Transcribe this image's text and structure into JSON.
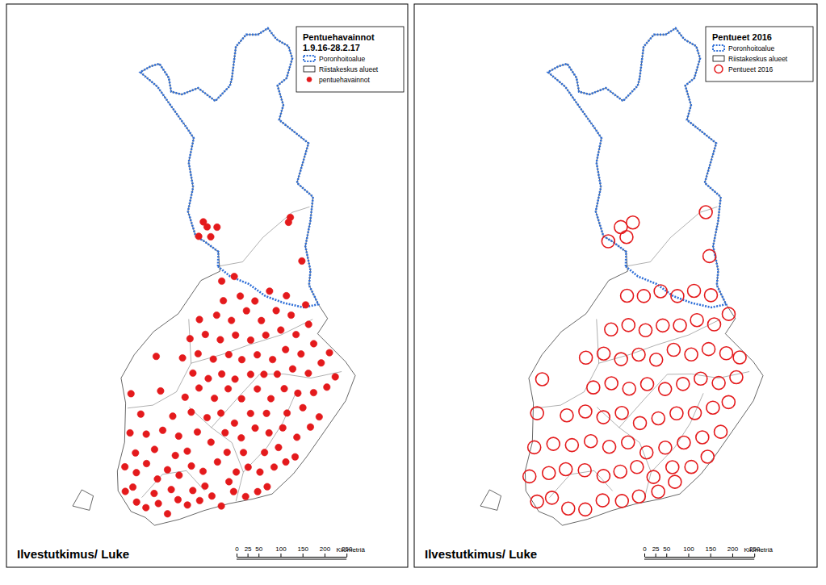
{
  "chart_data": [
    {
      "type": "map",
      "title": "Pentuehavainnot",
      "subtitle": "1.9.16-28.2.17",
      "legend": "top-right",
      "annotations": [
        "Ilvestutkimus/ Luke"
      ],
      "scale_bar": {
        "lim": [
          0,
          250
        ],
        "ticks": [
          0,
          25,
          50,
          100,
          150,
          200,
          250
        ],
        "label": "Kilometriä"
      },
      "series": [
        {
          "name": "Poronhoitoalue",
          "type": "boundary",
          "color": "#2f6fd8",
          "line_style": "dotted"
        },
        {
          "name": "Riistakeskus alueet",
          "type": "region",
          "color": "#000000"
        },
        {
          "name": "pentuehavainnot",
          "type": "scatter",
          "color": "#e41a1c",
          "marker": "dot",
          "x": [
            21.7,
            22.2,
            22.6,
            23.1,
            23.5,
            23.9,
            24.3,
            24.8,
            25.3,
            25.7,
            26.2,
            26.7,
            27.2,
            27.6,
            22.0,
            22.9,
            23.6,
            24.5,
            25.0,
            26.0,
            21.6,
            22.1,
            22.5,
            23.0,
            23.4,
            23.9,
            24.4,
            24.9,
            25.5,
            26.3,
            26.8,
            27.3,
            27.9,
            28.4,
            28.8,
            22.0,
            22.8,
            23.7,
            24.2,
            25.9,
            26.6,
            27.5,
            28.1,
            21.7,
            22.4,
            23.1,
            23.8,
            24.6,
            25.2,
            25.8,
            26.5,
            27.1,
            27.7,
            28.3,
            28.9,
            29.5,
            29.9,
            22.1,
            23.5,
            24.3,
            25.0,
            25.6,
            26.2,
            26.9,
            27.6,
            28.5,
            29.2,
            21.6,
            22.9,
            24.0,
            24.6,
            25.3,
            25.9,
            26.5,
            27.2,
            27.8,
            28.4,
            29.0,
            29.7,
            30.3,
            30.7,
            24.3,
            25.0,
            25.6,
            26.2,
            26.9,
            27.5,
            28.1,
            28.8,
            29.5,
            30.1,
            22.6,
            23.8,
            24.5,
            25.2,
            25.9,
            26.5,
            27.2,
            27.9,
            28.5,
            29.2,
            29.8,
            30.5,
            24.1,
            24.8,
            25.5,
            26.2,
            26.9,
            27.6,
            28.3,
            29.0,
            29.6,
            24.5,
            25.3,
            26.0,
            26.7,
            27.4,
            28.1,
            28.8,
            29.5,
            25.6,
            26.4,
            27.1,
            27.8,
            28.6,
            25.5,
            26.1,
            24.3,
            24.7,
            24.9,
            25.2,
            24.5,
            28.8,
            28.9,
            29.4
          ],
          "values": [
            60.5,
            60.3,
            60.2,
            60.3,
            60.1,
            60.4,
            60.3,
            60.4,
            60.5,
            60.3,
            60.6,
            60.5,
            60.6,
            60.7,
            60.6,
            60.5,
            60.6,
            60.6,
            60.7,
            60.8,
            61.0,
            60.9,
            61.1,
            60.8,
            61.0,
            60.9,
            61.1,
            61.0,
            61.2,
            61.0,
            61.1,
            61.0,
            61.1,
            61.2,
            61.3,
            61.3,
            61.4,
            61.3,
            61.4,
            61.4,
            61.4,
            61.4,
            61.5,
            61.7,
            61.7,
            61.8,
            61.7,
            61.8,
            61.6,
            61.8,
            61.7,
            61.9,
            61.8,
            61.9,
            61.7,
            61.9,
            62.1,
            62.1,
            62.1,
            62.2,
            62.1,
            62.2,
            62.0,
            62.2,
            62.2,
            62.2,
            62.3,
            62.5,
            62.6,
            62.5,
            62.7,
            62.5,
            62.7,
            62.5,
            62.7,
            62.5,
            62.7,
            62.6,
            62.6,
            62.7,
            62.9,
            63.0,
            62.9,
            63.0,
            62.9,
            63.0,
            63.0,
            63.0,
            63.1,
            63.0,
            63.2,
            63.3,
            63.3,
            63.4,
            63.3,
            63.4,
            63.3,
            63.4,
            63.3,
            63.5,
            63.4,
            63.6,
            63.4,
            63.7,
            63.8,
            63.7,
            63.8,
            63.7,
            63.8,
            63.9,
            63.8,
            64.0,
            64.1,
            64.2,
            64.1,
            64.3,
            64.1,
            64.3,
            64.2,
            64.4,
            64.5,
            64.6,
            64.5,
            64.7,
            64.6,
            64.9,
            65.0,
            65.8,
            66.0,
            65.8,
            66.0,
            66.1,
            66.1,
            66.2,
            65.3
          ]
        }
      ]
    },
    {
      "type": "map",
      "title": "Pentueet 2016",
      "legend": "top-right",
      "annotations": [
        "Ilvestutkimus/ Luke"
      ],
      "scale_bar": {
        "lim": [
          0,
          250
        ],
        "ticks": [
          0,
          25,
          50,
          100,
          150,
          200,
          250
        ],
        "label": "Kilometriä"
      },
      "series": [
        {
          "name": "Poronhoitoalue",
          "type": "boundary",
          "color": "#2f6fd8",
          "line_style": "dotted"
        },
        {
          "name": "Riistakeskus alueet",
          "type": "region",
          "color": "#000000"
        },
        {
          "name": "Pentueet 2016",
          "type": "scatter",
          "color": "#e41a1c",
          "marker": "circle",
          "x": [
            21.9,
            22.5,
            23.2,
            23.9,
            24.6,
            25.4,
            26.1,
            26.9,
            27.6,
            21.5,
            22.3,
            23.0,
            23.8,
            24.6,
            25.3,
            26.0,
            26.7,
            27.5,
            28.3,
            29.0,
            21.6,
            22.4,
            23.2,
            24.0,
            24.8,
            25.6,
            26.4,
            27.2,
            28.0,
            28.8,
            29.6,
            21.6,
            22.9,
            23.7,
            24.5,
            25.3,
            26.1,
            26.9,
            27.7,
            28.5,
            29.3,
            30.0,
            21.7,
            24.0,
            24.8,
            25.6,
            26.4,
            27.2,
            28.0,
            28.8,
            29.6,
            30.4,
            23.6,
            24.4,
            25.2,
            26.0,
            26.8,
            27.6,
            28.4,
            29.2,
            30.0,
            30.6,
            24.7,
            25.5,
            26.3,
            27.1,
            27.9,
            28.7,
            29.5,
            30.2,
            25.4,
            26.2,
            27.0,
            27.8,
            28.6,
            29.4,
            24.4,
            25.0,
            25.6,
            25.3,
            29.4,
            29.3
          ],
          "values": [
            60.3,
            60.4,
            60.2,
            60.2,
            60.4,
            60.4,
            60.5,
            60.6,
            60.8,
            60.8,
            60.9,
            61.0,
            61.0,
            60.9,
            61.0,
            61.1,
            60.9,
            61.1,
            61.1,
            61.3,
            61.4,
            61.5,
            61.5,
            61.6,
            61.5,
            61.6,
            61.4,
            61.5,
            61.6,
            61.7,
            61.8,
            62.1,
            62.1,
            62.2,
            62.1,
            62.2,
            62.0,
            62.1,
            62.2,
            62.2,
            62.3,
            62.4,
            62.8,
            62.7,
            62.8,
            62.7,
            62.8,
            62.7,
            62.8,
            62.9,
            62.8,
            62.9,
            63.3,
            63.4,
            63.3,
            63.4,
            63.3,
            63.5,
            63.4,
            63.5,
            63.4,
            63.3,
            63.9,
            64.0,
            63.9,
            64.0,
            64.0,
            64.1,
            64.0,
            64.2,
            64.6,
            64.6,
            64.7,
            64.6,
            64.7,
            64.6,
            65.7,
            66.0,
            66.1,
            65.8,
            65.4,
            66.3
          ]
        }
      ]
    }
  ]
}
